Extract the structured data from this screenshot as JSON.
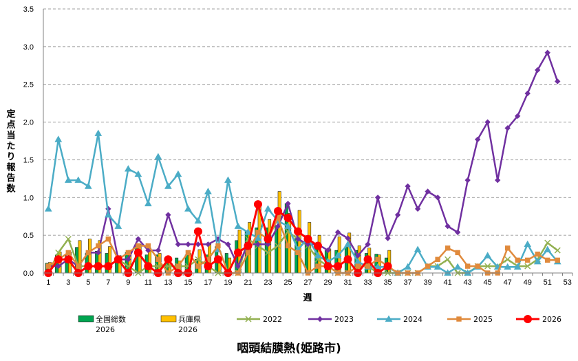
{
  "chart_data": {
    "type": "bar+line",
    "title": "咽頭結膜熱(姫路市)",
    "xlabel": "週",
    "ylabel": "定点当たり報告数",
    "ylim": [
      0,
      3.5
    ],
    "yticks": [
      "0.0",
      "0.5",
      "1.0",
      "1.5",
      "2.0",
      "2.5",
      "3.0",
      "3.5"
    ],
    "xlim": [
      1,
      53
    ],
    "xticks": [
      "1",
      "3",
      "5",
      "7",
      "9",
      "11",
      "13",
      "15",
      "17",
      "19",
      "21",
      "23",
      "25",
      "27",
      "29",
      "31",
      "33",
      "35",
      "37",
      "39",
      "41",
      "43",
      "45",
      "47",
      "49",
      "51",
      "53"
    ],
    "grid": "horizontal dashed",
    "legend_position": "bottom",
    "bar_series": [
      {
        "name": "全国総数",
        "name2": "2026",
        "color": "#00A550",
        "values": [
          0.13,
          0.24,
          0.23,
          0.34,
          0.26,
          0.29,
          0.26,
          0.21,
          0.27,
          0.36,
          0.24,
          0.24,
          0.18,
          0.2,
          0.24,
          0.18,
          0.24,
          0.35,
          0.26,
          0.43,
          0.56,
          0.6,
          0.6,
          0.63,
          0.92,
          0.48,
          0.42,
          0.35,
          0.3,
          0.3,
          0.34,
          0.3,
          0.26,
          0.25,
          0.2
        ]
      },
      {
        "name": "兵庫県",
        "name2": "2026",
        "color": "#FFC000",
        "values": [
          0.14,
          0.28,
          0.28,
          0.43,
          0.45,
          0.43,
          0.35,
          0.23,
          0.3,
          0.38,
          0.33,
          0.26,
          0.19,
          0.16,
          0.26,
          0.31,
          0.4,
          0.2,
          0.2,
          0.57,
          0.67,
          0.88,
          0.71,
          1.08,
          0.79,
          0.83,
          0.67,
          0.5,
          0.32,
          0.48,
          0.53,
          0.36,
          0.33,
          0.24,
          0.3
        ]
      }
    ],
    "line_series": [
      {
        "name": "2022",
        "color": "#92B050",
        "marker": "x",
        "x": [
          1,
          2,
          3,
          4,
          5,
          6,
          7,
          8,
          9,
          10,
          11,
          12,
          13,
          14,
          15,
          16,
          17,
          18,
          19,
          20,
          21,
          22,
          23,
          24,
          25,
          26,
          27,
          28,
          29,
          30,
          31,
          32,
          33,
          34,
          35,
          36,
          37,
          38,
          39,
          40,
          41,
          42,
          43,
          44,
          45,
          46,
          47,
          48,
          49,
          50,
          51,
          52
        ],
        "values": [
          0,
          0.27,
          0.45,
          0.09,
          0.09,
          0.09,
          0.09,
          0.18,
          0.09,
          0,
          0.09,
          0.09,
          0.09,
          0.09,
          0.09,
          0.18,
          0.09,
          0,
          0,
          0,
          0.45,
          0.36,
          0.27,
          0.36,
          0.55,
          0.45,
          0.36,
          0.18,
          0.09,
          0,
          0,
          0.09,
          0.09,
          0,
          0,
          0,
          0,
          0,
          0.09,
          0.09,
          0.18,
          0,
          0,
          0.09,
          0.09,
          0.09,
          0.18,
          0.09,
          0.09,
          0.18,
          0.4,
          0.3
        ]
      },
      {
        "name": "2023",
        "color": "#7030A0",
        "marker": "diamond",
        "x": [
          1,
          2,
          3,
          4,
          5,
          6,
          7,
          8,
          9,
          10,
          11,
          12,
          13,
          14,
          15,
          16,
          17,
          18,
          19,
          20,
          21,
          22,
          23,
          24,
          25,
          26,
          27,
          28,
          29,
          30,
          31,
          32,
          33,
          34,
          35,
          36,
          37,
          38,
          39,
          40,
          41,
          42,
          43,
          44,
          45,
          46,
          47,
          48,
          49,
          50,
          51,
          52
        ],
        "values": [
          0.09,
          0.09,
          0.18,
          0.09,
          0.27,
          0.27,
          0.85,
          0.18,
          0.18,
          0.45,
          0.3,
          0.3,
          0.77,
          0.38,
          0.38,
          0.38,
          0.38,
          0.45,
          0.38,
          0.09,
          0.38,
          0.38,
          0.38,
          0.62,
          0.92,
          0.45,
          0.38,
          0.38,
          0.3,
          0.54,
          0.46,
          0.23,
          0.38,
          1.0,
          0.46,
          0.77,
          1.15,
          0.85,
          1.08,
          1.0,
          0.62,
          0.54,
          1.23,
          1.77,
          2.0,
          1.23,
          1.92,
          2.08,
          2.38,
          2.69,
          2.92,
          2.54
        ]
      },
      {
        "name": "2024",
        "color": "#4BACC6",
        "marker": "triangle",
        "x": [
          1,
          2,
          3,
          4,
          5,
          6,
          7,
          8,
          9,
          10,
          11,
          12,
          13,
          14,
          15,
          16,
          17,
          18,
          19,
          20,
          21,
          22,
          23,
          24,
          25,
          26,
          27,
          28,
          29,
          30,
          31,
          32,
          33,
          34,
          35,
          36,
          37,
          38,
          39,
          40,
          41,
          42,
          43,
          44,
          45,
          46,
          47,
          48,
          49,
          50,
          51,
          52
        ],
        "values": [
          0.85,
          1.77,
          1.23,
          1.23,
          1.15,
          1.85,
          0.77,
          0.62,
          1.38,
          1.31,
          0.92,
          1.54,
          1.15,
          1.31,
          0.85,
          0.69,
          1.08,
          0.31,
          1.23,
          0.62,
          0.54,
          0.46,
          0.85,
          0.69,
          0.62,
          0.31,
          0.46,
          0.23,
          0.15,
          0.23,
          0.38,
          0.15,
          0.08,
          0.08,
          0.08,
          0,
          0.08,
          0.31,
          0.08,
          0.08,
          0,
          0.08,
          0,
          0.08,
          0.23,
          0.08,
          0.08,
          0.08,
          0.38,
          0.15,
          0.31,
          0.15
        ]
      },
      {
        "name": "2025",
        "color": "#E08A3C",
        "marker": "square",
        "x": [
          1,
          2,
          3,
          4,
          5,
          6,
          7,
          8,
          9,
          10,
          11,
          12,
          13,
          14,
          15,
          16,
          17,
          18,
          19,
          20,
          21,
          22,
          23,
          24,
          25,
          26,
          27,
          28,
          29,
          30,
          31,
          32,
          33,
          34,
          35,
          36,
          37,
          38,
          39,
          40,
          41,
          42,
          43,
          44,
          45,
          46,
          47,
          48,
          49,
          50,
          51,
          52
        ],
        "values": [
          0.09,
          0.18,
          0.27,
          0.09,
          0.27,
          0.36,
          0.45,
          0.18,
          0.27,
          0.36,
          0.36,
          0.18,
          0,
          0.09,
          0.27,
          0.09,
          0.18,
          0.36,
          0,
          0,
          0.27,
          0.54,
          0.45,
          0.73,
          0.36,
          0.27,
          0,
          0.09,
          0.09,
          0,
          0,
          0.09,
          0.09,
          0.18,
          0.09,
          0,
          0,
          0,
          0.09,
          0.18,
          0.33,
          0.27,
          0.09,
          0.09,
          0,
          0,
          0.33,
          0.17,
          0.17,
          0.25,
          0.17,
          0.17
        ]
      },
      {
        "name": "2026",
        "color": "#FF0000",
        "marker": "circle",
        "x": [
          1,
          2,
          3,
          4,
          5,
          6,
          7,
          8,
          9,
          10,
          11,
          12,
          13,
          14,
          15,
          16,
          17,
          18,
          19,
          20,
          21,
          22,
          23,
          24,
          25,
          26,
          27,
          28,
          29,
          30,
          31,
          32,
          33,
          34,
          35
        ],
        "values": [
          0,
          0.18,
          0.18,
          0,
          0.09,
          0.09,
          0.09,
          0.18,
          0,
          0.27,
          0.09,
          0,
          0.18,
          0,
          0,
          0.55,
          0.09,
          0.18,
          0,
          0.27,
          0.36,
          0.91,
          0.45,
          0.82,
          0.73,
          0.55,
          0.45,
          0.36,
          0.09,
          0.09,
          0.18,
          0,
          0.18,
          0,
          0.09
        ]
      }
    ]
  }
}
